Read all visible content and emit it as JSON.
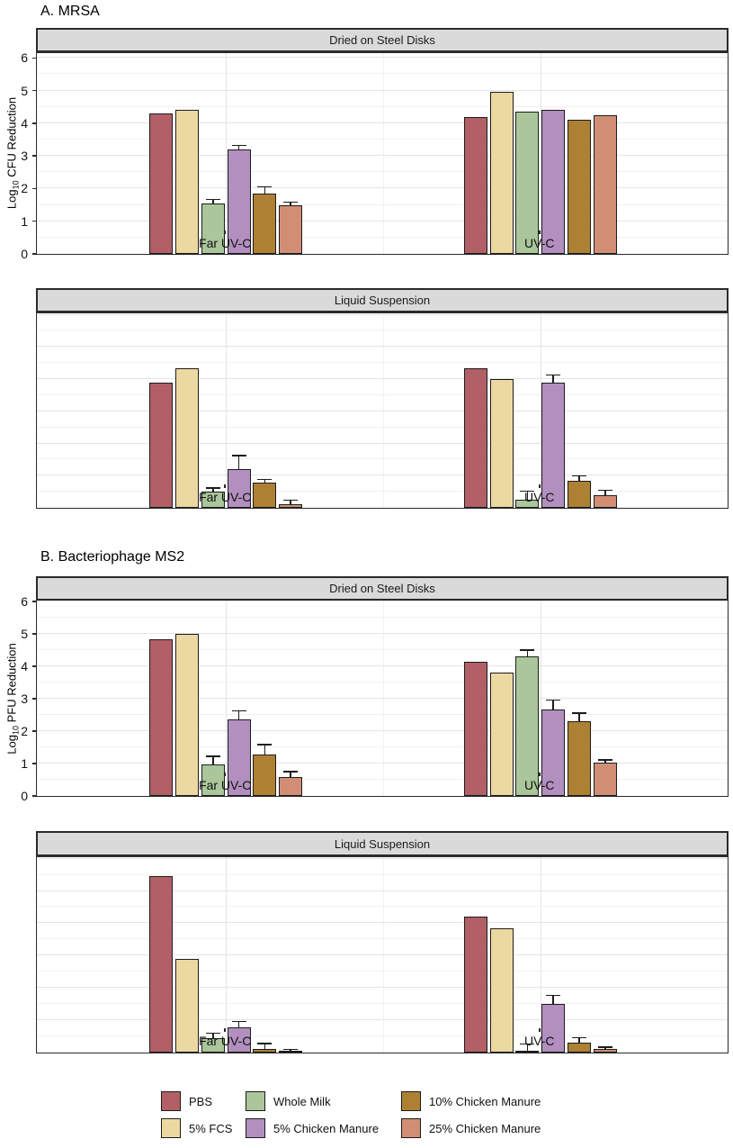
{
  "figure": {
    "sections": [
      {
        "title": "A. MRSA",
        "ylabel": {
          "pre": "Log",
          "sub": "10",
          "post": " CFU Reduction"
        }
      },
      {
        "title": "B. Bacteriophage MS2",
        "ylabel": {
          "pre": "Log",
          "sub": "10",
          "post": " PFU Reduction"
        }
      }
    ]
  },
  "legend": {
    "items": [
      {
        "label": "PBS",
        "color": "#b25f66"
      },
      {
        "label": "5% FCS",
        "color": "#ecd8a1"
      },
      {
        "label": "Whole Milk",
        "color": "#aac69a"
      },
      {
        "label": "5% Chicken Manure",
        "color": "#b28fbe"
      },
      {
        "label": "10% Chicken Manure",
        "color": "#ad8034"
      },
      {
        "label": "25% Chicken Manure",
        "color": "#d18e75"
      }
    ]
  },
  "chart_data": [
    {
      "type": "bar",
      "section": "A. MRSA",
      "title": "Dried on Steel Disks",
      "ylabel": "Log10 CFU Reduction",
      "ylim": [
        0,
        6
      ],
      "yticks": [
        0,
        1,
        2,
        3,
        4,
        5,
        6
      ],
      "minor_grid_step": 0.5,
      "show_y_tick_labels": true,
      "categories": [
        "Far UV-C",
        "UV-C"
      ],
      "series": [
        {
          "name": "PBS",
          "values": [
            4.3,
            4.2
          ],
          "errors": [
            0,
            0
          ]
        },
        {
          "name": "5% FCS",
          "values": [
            4.4,
            4.95
          ],
          "errors": [
            0,
            0
          ]
        },
        {
          "name": "Whole Milk",
          "values": [
            1.55,
            4.35
          ],
          "errors": [
            0.1,
            0
          ]
        },
        {
          "name": "5% Chicken Manure",
          "values": [
            3.2,
            4.4
          ],
          "errors": [
            0.1,
            0
          ]
        },
        {
          "name": "10% Chicken Manure",
          "values": [
            1.85,
            4.1
          ],
          "errors": [
            0.18,
            0
          ]
        },
        {
          "name": "25% Chicken Manure",
          "values": [
            1.5,
            4.25
          ],
          "errors": [
            0.07,
            0
          ]
        }
      ]
    },
    {
      "type": "bar",
      "section": "A. MRSA",
      "title": "Liquid Suspension",
      "ylabel": "Log10 CFU Reduction",
      "ylim": [
        0,
        6
      ],
      "yticks": [],
      "minor_grid_step": 0.5,
      "show_y_tick_labels": false,
      "categories": [
        "Far UV-C",
        "UV-C"
      ],
      "series": [
        {
          "name": "PBS",
          "values": [
            3.9,
            4.35
          ],
          "errors": [
            0,
            0
          ]
        },
        {
          "name": "5% FCS",
          "values": [
            4.35,
            4.0
          ],
          "errors": [
            0,
            0
          ]
        },
        {
          "name": "Whole Milk",
          "values": [
            0.5,
            0.25
          ],
          "errors": [
            0.1,
            0.25
          ]
        },
        {
          "name": "5% Chicken Manure",
          "values": [
            1.2,
            3.9
          ],
          "errors": [
            0.4,
            0.2
          ]
        },
        {
          "name": "10% Chicken Manure",
          "values": [
            0.78,
            0.85
          ],
          "errors": [
            0.08,
            0.12
          ]
        },
        {
          "name": "25% Chicken Manure",
          "values": [
            0.1,
            0.38
          ],
          "errors": [
            0.12,
            0.14
          ]
        }
      ]
    },
    {
      "type": "bar",
      "section": "B. Bacteriophage MS2",
      "title": "Dried on Steel Disks",
      "ylabel": "Log10 PFU Reduction",
      "ylim": [
        0,
        6
      ],
      "yticks": [
        0,
        1,
        2,
        3,
        4,
        5,
        6
      ],
      "minor_grid_step": 0.5,
      "show_y_tick_labels": true,
      "categories": [
        "Far UV-C",
        "UV-C"
      ],
      "series": [
        {
          "name": "PBS",
          "values": [
            4.85,
            4.15
          ],
          "errors": [
            0,
            0
          ]
        },
        {
          "name": "5% FCS",
          "values": [
            5.0,
            3.82
          ],
          "errors": [
            0,
            0
          ]
        },
        {
          "name": "Whole Milk",
          "values": [
            0.98,
            4.3
          ],
          "errors": [
            0.22,
            0.18
          ]
        },
        {
          "name": "5% Chicken Manure",
          "values": [
            2.35,
            2.67
          ],
          "errors": [
            0.25,
            0.27
          ]
        },
        {
          "name": "10% Chicken Manure",
          "values": [
            1.27,
            2.3
          ],
          "errors": [
            0.3,
            0.24
          ]
        },
        {
          "name": "25% Chicken Manure",
          "values": [
            0.58,
            1.03
          ],
          "errors": [
            0.15,
            0.06
          ]
        }
      ]
    },
    {
      "type": "bar",
      "section": "B. Bacteriophage MS2",
      "title": "Liquid Suspension",
      "ylabel": "Log10 PFU Reduction",
      "ylim": [
        0,
        6
      ],
      "yticks": [],
      "minor_grid_step": 0.5,
      "show_y_tick_labels": false,
      "categories": [
        "Far UV-C",
        "UV-C"
      ],
      "series": [
        {
          "name": "PBS",
          "values": [
            5.45,
            4.2
          ],
          "errors": [
            0,
            0
          ]
        },
        {
          "name": "5% FCS",
          "values": [
            2.9,
            3.85
          ],
          "errors": [
            0,
            0
          ]
        },
        {
          "name": "Whole Milk",
          "values": [
            0.45,
            0.07
          ],
          "errors": [
            0.13,
            0.18
          ]
        },
        {
          "name": "5% Chicken Manure",
          "values": [
            0.78,
            1.5
          ],
          "errors": [
            0.16,
            0.25
          ]
        },
        {
          "name": "10% Chicken Manure",
          "values": [
            0.1,
            0.3
          ],
          "errors": [
            0.16,
            0.14
          ]
        },
        {
          "name": "25% Chicken Manure",
          "values": [
            0.06,
            0.1
          ],
          "errors": [
            0.02,
            0.05
          ]
        }
      ]
    }
  ]
}
